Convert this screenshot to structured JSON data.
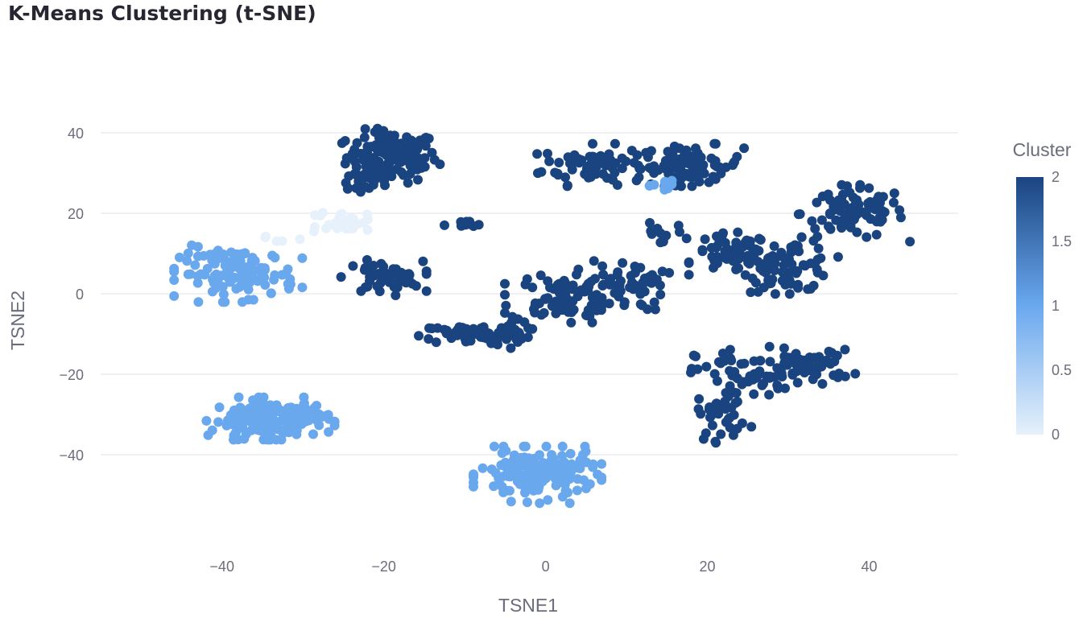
{
  "title": "K-Means Clustering (t-SNE)",
  "chart_data": {
    "type": "scatter",
    "title": "K-Means Clustering (t-SNE)",
    "xlabel": "TSNE1",
    "ylabel": "TSNE2",
    "xlim": [
      -55,
      51
    ],
    "ylim": [
      -60,
      47
    ],
    "x_ticks": [
      -40,
      -20,
      0,
      20,
      40
    ],
    "x_tick_labels": [
      "−40",
      "−20",
      "0",
      "20",
      "40"
    ],
    "y_ticks": [
      -40,
      -20,
      0,
      20,
      40
    ],
    "y_tick_labels": [
      "−40",
      "−20",
      "0",
      "20",
      "40"
    ],
    "grid": "horizontal",
    "colorbar": {
      "title": "Cluster",
      "range": [
        0,
        2
      ],
      "ticks": [
        0,
        0.5,
        1,
        1.5,
        2
      ],
      "tick_labels": [
        "0",
        "0.5",
        "1",
        "1.5",
        "2"
      ],
      "colors": [
        "#e6f1fb",
        "#6aa8ee",
        "#1a4480"
      ]
    },
    "clusters": [
      {
        "cluster": 2,
        "center": [
          -19,
          34
        ],
        "spread": [
          3.5,
          4
        ],
        "count": 130
      },
      {
        "cluster": 2,
        "center": [
          -23,
          28
        ],
        "spread": [
          2,
          2
        ],
        "count": 18
      },
      {
        "cluster": 2,
        "center": [
          6,
          32
        ],
        "spread": [
          4,
          3
        ],
        "count": 80
      },
      {
        "cluster": 2,
        "center": [
          18,
          32
        ],
        "spread": [
          4,
          3
        ],
        "count": 80
      },
      {
        "cluster": 2,
        "center": [
          38,
          20
        ],
        "spread": [
          4,
          4
        ],
        "count": 90
      },
      {
        "cluster": 2,
        "center": [
          23,
          10
        ],
        "spread": [
          3,
          3
        ],
        "count": 50
      },
      {
        "cluster": 2,
        "center": [
          30,
          7
        ],
        "spread": [
          3.5,
          4
        ],
        "count": 80
      },
      {
        "cluster": 2,
        "center": [
          -20,
          4
        ],
        "spread": [
          3,
          2.5
        ],
        "count": 55
      },
      {
        "cluster": 2,
        "center": [
          -10,
          17
        ],
        "spread": [
          1.5,
          0.7
        ],
        "count": 10
      },
      {
        "cluster": 2,
        "center": [
          -9,
          -10
        ],
        "spread": [
          4,
          1.6
        ],
        "count": 60
      },
      {
        "cluster": 2,
        "center": [
          -4,
          -10
        ],
        "spread": [
          2,
          2
        ],
        "count": 25
      },
      {
        "cluster": 2,
        "center": [
          2,
          -1
        ],
        "spread": [
          4,
          4
        ],
        "count": 90
      },
      {
        "cluster": 2,
        "center": [
          10,
          2
        ],
        "spread": [
          3,
          4
        ],
        "count": 50
      },
      {
        "cluster": 2,
        "center": [
          25,
          -20
        ],
        "spread": [
          4,
          4
        ],
        "count": 60
      },
      {
        "cluster": 2,
        "center": [
          33,
          -18
        ],
        "spread": [
          3,
          2.5
        ],
        "count": 50
      },
      {
        "cluster": 2,
        "center": [
          22,
          -30
        ],
        "spread": [
          2,
          4
        ],
        "count": 35
      },
      {
        "cluster": 2,
        "center": [
          14,
          15
        ],
        "spread": [
          2,
          1.5
        ],
        "count": 12
      },
      {
        "cluster": 1,
        "center": [
          -38,
          5
        ],
        "spread": [
          4.5,
          4
        ],
        "count": 120
      },
      {
        "cluster": 1,
        "center": [
          -34,
          -31
        ],
        "spread": [
          4.5,
          3
        ],
        "count": 160
      },
      {
        "cluster": 1,
        "center": [
          -1,
          -45
        ],
        "spread": [
          4.5,
          4
        ],
        "count": 150
      },
      {
        "cluster": 1,
        "center": [
          15,
          27
        ],
        "spread": [
          2,
          1
        ],
        "count": 8
      },
      {
        "cluster": 0,
        "center": [
          -25,
          18
        ],
        "spread": [
          2,
          1.5
        ],
        "count": 30
      },
      {
        "cluster": 0,
        "center": [
          -32,
          14
        ],
        "spread": [
          2,
          1.5
        ],
        "count": 6
      }
    ]
  }
}
